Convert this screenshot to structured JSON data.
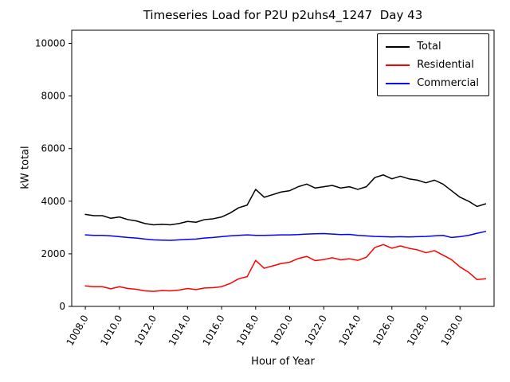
{
  "figure": {
    "title": "Timeseries Load for P2U p2uhs4_1247  Day 43",
    "xlabel": "Hour of Year",
    "ylabel": "kW total"
  },
  "chart_data": {
    "type": "line",
    "title": "Timeseries Load for P2U p2uhs4_1247  Day 43",
    "xlabel": "Hour of Year",
    "ylabel": "kW total",
    "xlim": [
      1007.2,
      1032.0
    ],
    "ylim": [
      0,
      10500
    ],
    "grid": false,
    "legend_position": "upper right",
    "xticks": [
      1008,
      1010,
      1012,
      1014,
      1016,
      1018,
      1020,
      1022,
      1024,
      1026,
      1028,
      1030
    ],
    "xtick_labels": [
      "1008.0",
      "1010.0",
      "1012.0",
      "1014.0",
      "1016.0",
      "1018.0",
      "1020.0",
      "1022.0",
      "1024.0",
      "1026.0",
      "1028.0",
      "1030.0"
    ],
    "yticks": [
      0,
      2000,
      4000,
      6000,
      8000,
      10000
    ],
    "ytick_labels": [
      "0",
      "2000",
      "4000",
      "6000",
      "8000",
      "10000"
    ],
    "x": [
      1008.0,
      1008.5,
      1009.0,
      1009.5,
      1010.0,
      1010.5,
      1011.0,
      1011.5,
      1012.0,
      1012.5,
      1013.0,
      1013.5,
      1014.0,
      1014.5,
      1015.0,
      1015.5,
      1016.0,
      1016.5,
      1017.0,
      1017.5,
      1018.0,
      1018.5,
      1019.0,
      1019.5,
      1020.0,
      1020.5,
      1021.0,
      1021.5,
      1022.0,
      1022.5,
      1023.0,
      1023.5,
      1024.0,
      1024.5,
      1025.0,
      1025.5,
      1026.0,
      1026.5,
      1027.0,
      1027.5,
      1028.0,
      1028.5,
      1029.0,
      1029.5,
      1030.0,
      1030.5,
      1031.0,
      1031.5
    ],
    "series": [
      {
        "name": "Total",
        "color": "#000000",
        "values": [
          3500,
          3450,
          3450,
          3350,
          3400,
          3300,
          3250,
          3150,
          3100,
          3120,
          3100,
          3150,
          3230,
          3200,
          3300,
          3330,
          3400,
          3550,
          3750,
          3850,
          4450,
          4150,
          4250,
          4350,
          4400,
          4550,
          4650,
          4500,
          4550,
          4600,
          4500,
          4550,
          4450,
          4550,
          4900,
          5000,
          4850,
          4950,
          4850,
          4800,
          4700,
          4800,
          4650,
          4400,
          4150,
          4000,
          3800,
          3900
        ]
      },
      {
        "name": "Residential",
        "color": "#ff0000",
        "values": [
          780,
          750,
          750,
          670,
          750,
          680,
          650,
          590,
          570,
          600,
          590,
          620,
          680,
          640,
          700,
          710,
          750,
          870,
          1050,
          1130,
          1750,
          1450,
          1540,
          1630,
          1680,
          1820,
          1900,
          1740,
          1780,
          1850,
          1770,
          1810,
          1750,
          1870,
          2240,
          2350,
          2210,
          2300,
          2210,
          2150,
          2040,
          2120,
          1950,
          1780,
          1500,
          1300,
          1020,
          1050
        ]
      },
      {
        "name": "Commercial",
        "color": "#0000ff",
        "values": [
          2720,
          2700,
          2700,
          2680,
          2650,
          2620,
          2600,
          2560,
          2530,
          2520,
          2510,
          2530,
          2550,
          2560,
          2600,
          2620,
          2650,
          2680,
          2700,
          2720,
          2700,
          2700,
          2710,
          2720,
          2720,
          2730,
          2750,
          2760,
          2770,
          2750,
          2730,
          2740,
          2700,
          2680,
          2660,
          2650,
          2640,
          2650,
          2640,
          2650,
          2660,
          2680,
          2700,
          2620,
          2650,
          2700,
          2780,
          2850
        ]
      }
    ]
  }
}
